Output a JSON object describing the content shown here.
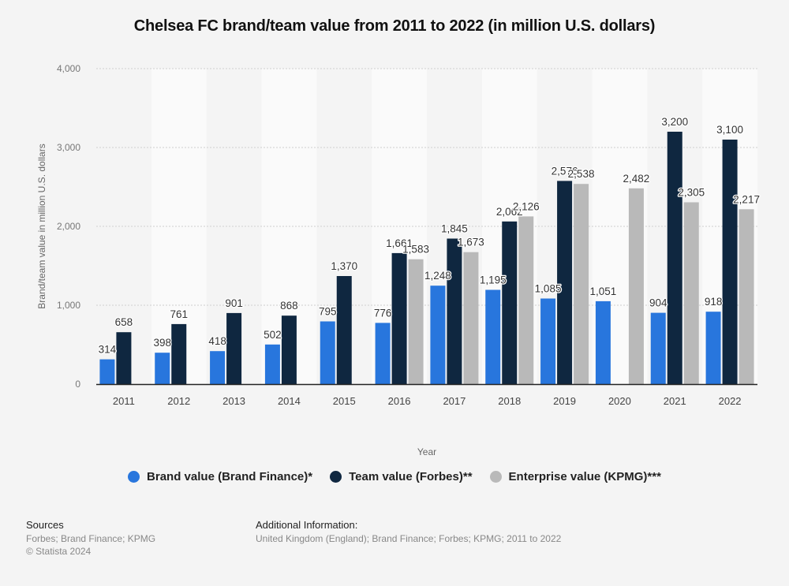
{
  "title": "Chelsea FC brand/team value from 2011 to 2022 (in million U.S. dollars)",
  "chart_data": {
    "type": "bar",
    "title": "Chelsea FC brand/team value from 2011 to 2022 (in million U.S. dollars)",
    "xlabel": "Year",
    "ylabel": "Brand/team value in million U.S. dollars",
    "ylim": [
      0,
      4000
    ],
    "yticks": [
      0,
      1000,
      2000,
      3000,
      4000
    ],
    "ytick_labels": [
      "0",
      "1,000",
      "2,000",
      "3,000",
      "4,000"
    ],
    "grid": true,
    "legend_position": "bottom",
    "categories": [
      "2011",
      "2012",
      "2013",
      "2014",
      "2015",
      "2016",
      "2017",
      "2018",
      "2019",
      "2020",
      "2021",
      "2022"
    ],
    "series": [
      {
        "name": "Brand value (Brand Finance)*",
        "color": "#2876dd",
        "values": [
          314,
          398,
          418,
          502,
          795,
          776,
          1248,
          1195,
          1085,
          1051,
          904,
          918
        ]
      },
      {
        "name": "Team value (Forbes)**",
        "color": "#0f2740",
        "values": [
          658,
          761,
          901,
          868,
          1370,
          1661,
          1845,
          2062,
          2576,
          null,
          3200,
          3100
        ]
      },
      {
        "name": "Enterprise value (KPMG)***",
        "color": "#b9b9b9",
        "values": [
          null,
          null,
          null,
          null,
          null,
          1583,
          1673,
          2126,
          2538,
          2482,
          2305,
          2217
        ]
      }
    ]
  },
  "footer": {
    "sources_heading": "Sources",
    "sources_text": "Forbes; Brand Finance; KPMG",
    "copyright": "© Statista 2024",
    "additional_heading": "Additional Information:",
    "additional_text": "United Kingdom (England); Brand Finance; Forbes; KPMG; 2011 to 2022"
  }
}
